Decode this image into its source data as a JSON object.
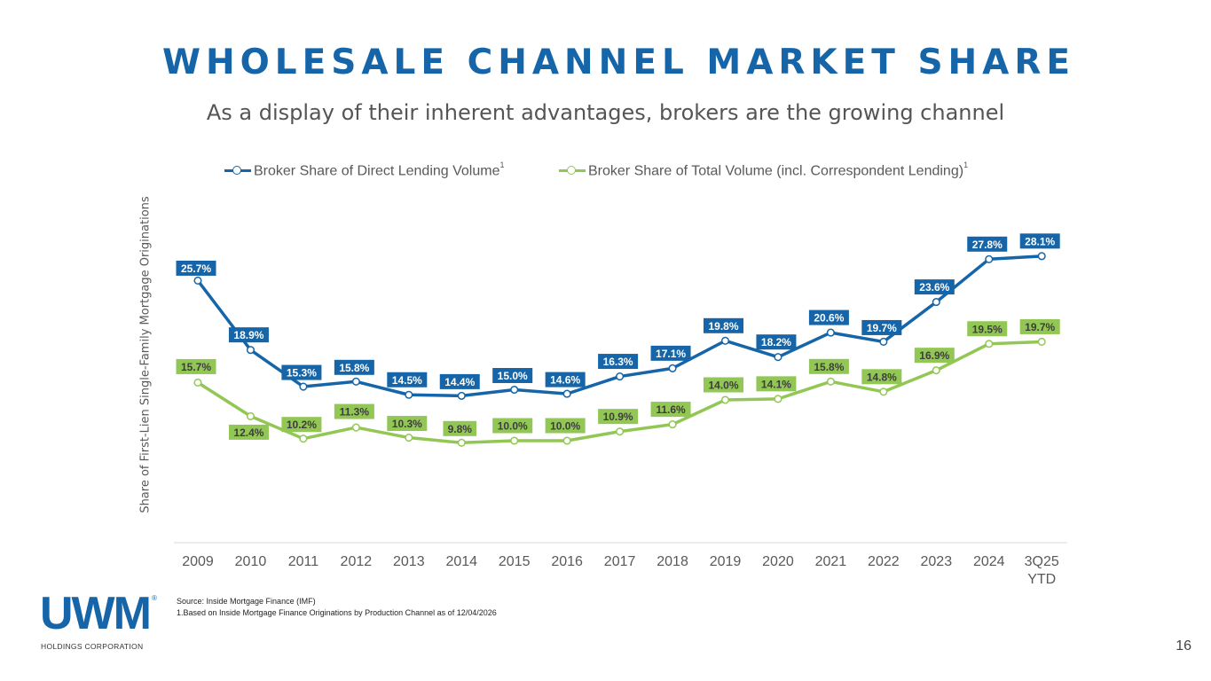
{
  "slide": {
    "title": "WHOLESALE CHANNEL MARKET SHARE",
    "subtitle": "As a display of their inherent advantages, brokers are the growing channel",
    "page_number": "16"
  },
  "logo": {
    "wordmark": "UWM",
    "registered": "®",
    "sub": "HOLDINGS CORPORATION"
  },
  "footnotes": {
    "source": "Source:  Inside Mortgage Finance (IMF)",
    "note1": "1.Based on Inside Mortgage Finance Originations by Production Channel as of 12/04/2026"
  },
  "colors": {
    "series1": "#1565a8",
    "series2": "#92c755",
    "axis": "#d9d9d9",
    "tick_text": "#595959"
  },
  "chart_data": {
    "type": "line",
    "title": "",
    "xlabel": "",
    "ylabel": "Share of First-Lien Single-Family Mortgage Originations",
    "categories": [
      "2009",
      "2010",
      "2011",
      "2012",
      "2013",
      "2014",
      "2015",
      "2016",
      "2017",
      "2018",
      "2019",
      "2020",
      "2021",
      "2022",
      "2023",
      "2024",
      "3Q25\nYTD"
    ],
    "ylim": [
      0,
      30
    ],
    "legend_position": "top",
    "grid": false,
    "series": [
      {
        "name": "Broker Share of Direct Lending Volume",
        "footnote": "1",
        "values": [
          25.7,
          18.9,
          15.3,
          15.8,
          14.5,
          14.4,
          15.0,
          14.6,
          16.3,
          17.1,
          19.8,
          18.2,
          20.6,
          19.7,
          23.6,
          27.8,
          28.1
        ],
        "labels": [
          "25.7%",
          "18.9%",
          "15.3%",
          "15.8%",
          "14.5%",
          "14.4%",
          "15.0%",
          "14.6%",
          "16.3%",
          "17.1%",
          "19.8%",
          "18.2%",
          "20.6%",
          "19.7%",
          "23.6%",
          "27.8%",
          "28.1%"
        ]
      },
      {
        "name": "Broker Share of Total Volume (incl. Correspondent Lending)",
        "footnote": "1",
        "values": [
          15.7,
          12.4,
          10.2,
          11.3,
          10.3,
          9.8,
          10.0,
          10.0,
          10.9,
          11.6,
          14.0,
          14.1,
          15.8,
          14.8,
          16.9,
          19.5,
          19.7
        ],
        "labels": [
          "15.7%",
          "12.4%",
          "10.2%",
          "11.3%",
          "10.3%",
          "9.8%",
          "10.0%",
          "10.0%",
          "10.9%",
          "11.6%",
          "14.0%",
          "14.1%",
          "15.8%",
          "14.8%",
          "16.9%",
          "19.5%",
          "19.7%"
        ]
      }
    ]
  }
}
